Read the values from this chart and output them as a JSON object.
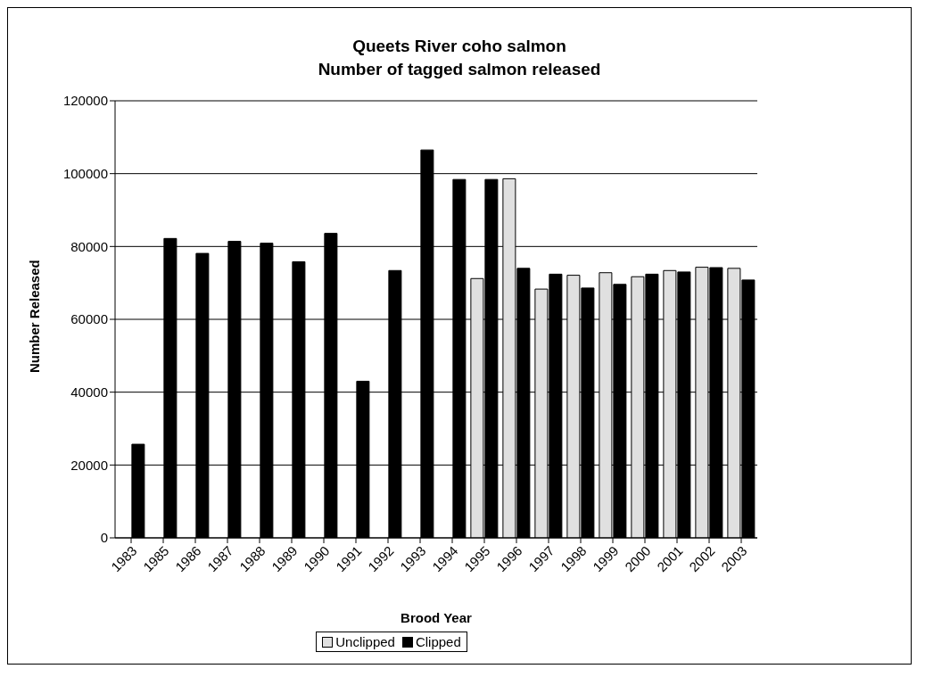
{
  "chart_data": {
    "type": "bar",
    "title": "Queets River coho salmon\nNumber of tagged salmon released",
    "xlabel": "Brood Year",
    "ylabel": "Number Released",
    "categories": [
      "1983",
      "1985",
      "1986",
      "1987",
      "1988",
      "1989",
      "1990",
      "1991",
      "1992",
      "1993",
      "1994",
      "1995",
      "1996",
      "1997",
      "1998",
      "1999",
      "2000",
      "2001",
      "2002",
      "2003"
    ],
    "series": [
      {
        "name": "Unclipped",
        "color": "#e0e0e0",
        "values": [
          null,
          null,
          null,
          null,
          null,
          null,
          null,
          null,
          null,
          null,
          null,
          71200,
          98600,
          68300,
          72100,
          72800,
          71700,
          73400,
          74300,
          74000
        ]
      },
      {
        "name": "Clipped",
        "color": "#000000",
        "values": [
          25700,
          82200,
          78100,
          81400,
          80900,
          75800,
          83600,
          43000,
          73400,
          106500,
          98400,
          98400,
          74000,
          72400,
          68600,
          69600,
          72400,
          73000,
          74200,
          70800
        ]
      }
    ],
    "ylim": [
      0,
      120000
    ],
    "yticks": [
      0,
      20000,
      40000,
      60000,
      80000,
      100000,
      120000
    ],
    "grid": "y",
    "legend": "bottom"
  }
}
